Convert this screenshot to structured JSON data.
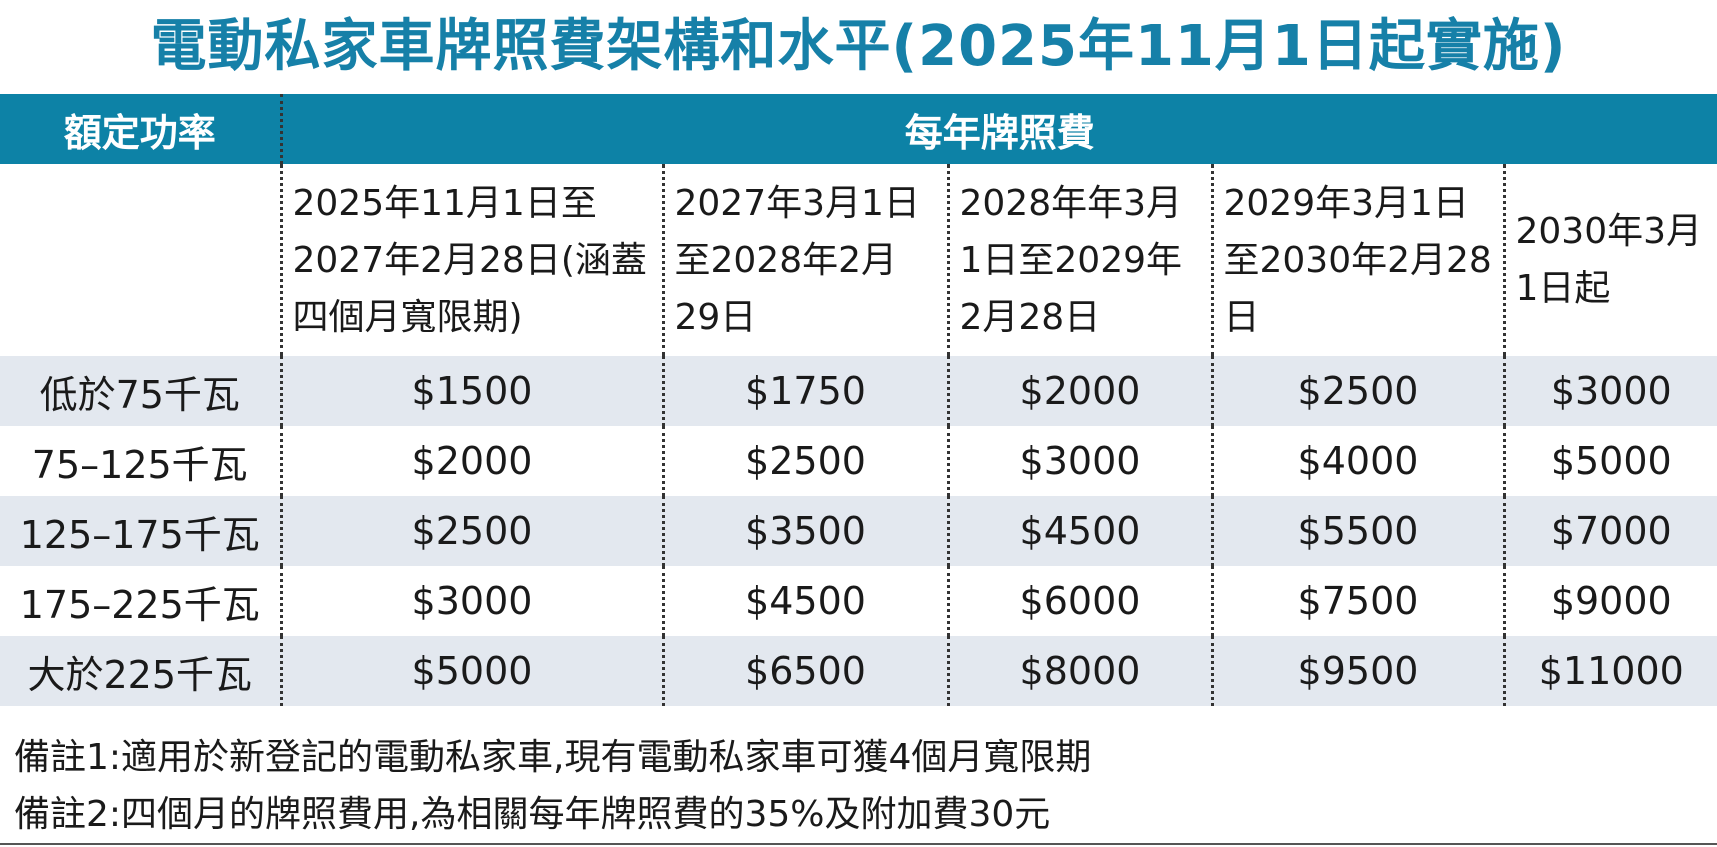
{
  "title": "電動私家車牌照費架構和水平(2025年11月1日起實施)",
  "header": {
    "power_label": "額定功率",
    "fee_label": "每年牌照費"
  },
  "periods": [
    "2025年11月1日至2027年2月28日(涵蓋四個月寬限期)",
    "2027年3月1日至2028年2月29日",
    "2028年年3月1日至2029年2月28日",
    "2029年3月1日至2030年2月28日",
    "2030年3月1日起"
  ],
  "rows": [
    {
      "power": "低於75千瓦",
      "fees": [
        "$1500",
        "$1750",
        "$2000",
        "$2500",
        "$3000"
      ]
    },
    {
      "power": "75–125千瓦",
      "fees": [
        "$2000",
        "$2500",
        "$3000",
        "$4000",
        "$5000"
      ]
    },
    {
      "power": "125–175千瓦",
      "fees": [
        "$2500",
        "$3500",
        "$4500",
        "$5500",
        "$7000"
      ]
    },
    {
      "power": "175–225千瓦",
      "fees": [
        "$3000",
        "$4500",
        "$6000",
        "$7500",
        "$9000"
      ]
    },
    {
      "power": "大於225千瓦",
      "fees": [
        "$5000",
        "$6500",
        "$8000",
        "$9500",
        "$11000"
      ]
    }
  ],
  "notes": [
    "備註1:適用於新登記的電動私家車,現有電動私家車可獲4個月寬限期",
    "備註2:四個月的牌照費用,為相關每年牌照費的35%及附加費30元"
  ],
  "colors": {
    "title": "#1680a8",
    "header_bg": "#0d82a6",
    "row_shade": "#e3e8ef"
  }
}
